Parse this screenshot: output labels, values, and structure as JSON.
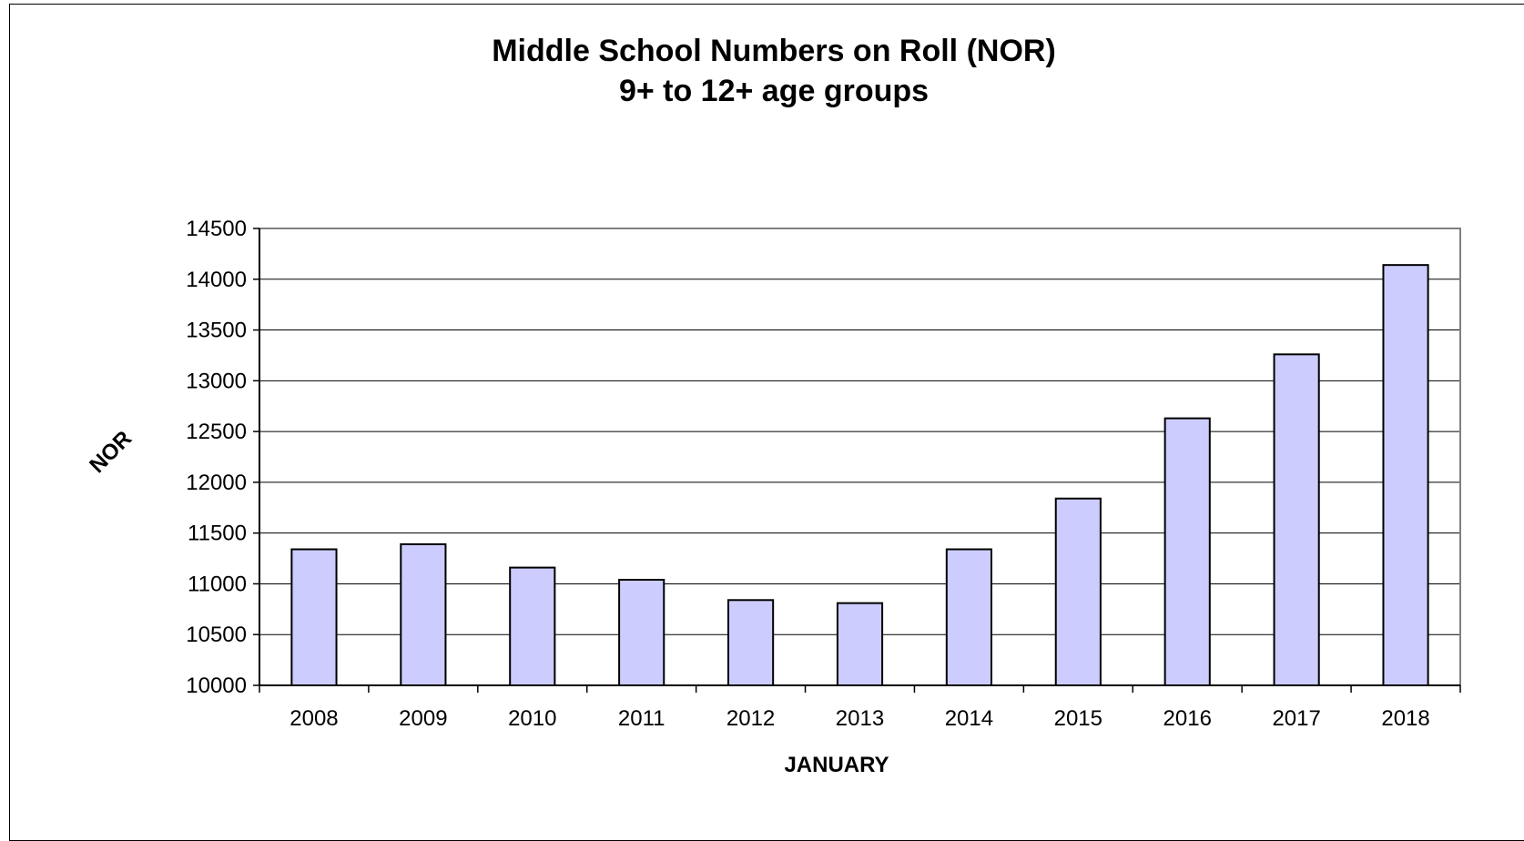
{
  "chart_data": {
    "type": "bar",
    "title": "Middle School Numbers on Roll (NOR)",
    "subtitle": "9+ to 12+ age groups",
    "xlabel": "JANUARY",
    "ylabel": "NOR",
    "categories": [
      "2008",
      "2009",
      "2010",
      "2011",
      "2012",
      "2013",
      "2014",
      "2015",
      "2016",
      "2017",
      "2018"
    ],
    "values": [
      11340,
      11390,
      11160,
      11040,
      10840,
      10810,
      11340,
      11840,
      12630,
      13260,
      14140
    ],
    "ylim": [
      10000,
      14500
    ],
    "yticks": [
      10000,
      10500,
      11000,
      11500,
      12000,
      12500,
      13000,
      13500,
      14000,
      14500
    ],
    "grid": true,
    "legend": "none",
    "colors": {
      "bar_fill": "#ccccff",
      "bar_stroke": "#000000",
      "gridline": "#000000",
      "plot_border": "#808080"
    }
  }
}
